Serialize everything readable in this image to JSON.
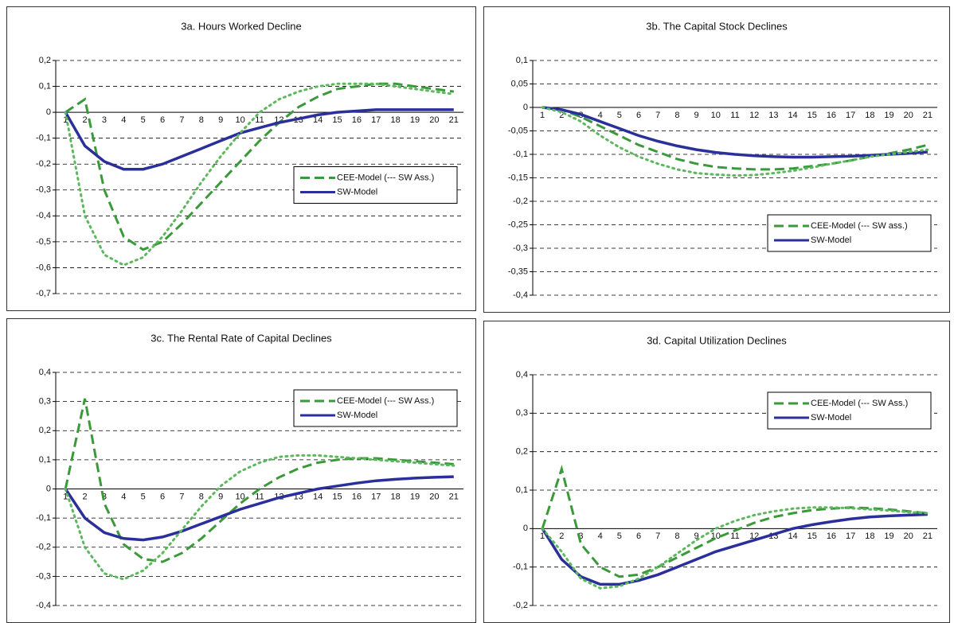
{
  "chart_data": [
    {
      "type": "line",
      "title": "3a. Hours Worked Decline",
      "categories": [
        "1",
        "2",
        "3",
        "4",
        "5",
        "6",
        "7",
        "8",
        "9",
        "10",
        "11",
        "12",
        "13",
        "14",
        "15",
        "16",
        "17",
        "18",
        "19",
        "20",
        "21"
      ],
      "ylim": [
        -0.7,
        0.2
      ],
      "yticks": [
        {
          "value": -0.7,
          "label": "-0,7"
        },
        {
          "value": -0.6,
          "label": "-0,6"
        },
        {
          "value": -0.5,
          "label": "-0,5"
        },
        {
          "value": -0.4,
          "label": "-0,4"
        },
        {
          "value": -0.3,
          "label": "-0,3"
        },
        {
          "value": -0.2,
          "label": "-0,2"
        },
        {
          "value": -0.1,
          "label": "-0,1"
        },
        0,
        {
          "value": 0.1,
          "label": "0,1"
        },
        {
          "value": 0.2,
          "label": "0,2"
        }
      ],
      "grid": true,
      "legend": "center right",
      "series": [
        {
          "name": "CEE-Model (--- SW Ass.)",
          "color": "#3a9a3a",
          "style": "dashed",
          "values": [
            0,
            0.05,
            -0.3,
            -0.48,
            -0.53,
            -0.5,
            -0.43,
            -0.35,
            -0.27,
            -0.19,
            -0.11,
            -0.04,
            0.02,
            0.06,
            0.09,
            0.1,
            0.11,
            0.11,
            0.1,
            0.09,
            0.08
          ]
        },
        {
          "name": "SW-Model",
          "color": "#2b2f9a",
          "style": "solid",
          "values": [
            0,
            -0.13,
            -0.19,
            -0.22,
            -0.22,
            -0.2,
            -0.17,
            -0.14,
            -0.11,
            -0.08,
            -0.06,
            -0.04,
            -0.025,
            -0.01,
            0,
            0.005,
            0.01,
            0.01,
            0.01,
            0.01,
            0.01
          ]
        },
        {
          "color": "#5cb85c",
          "style": "dotted",
          "values": [
            0,
            -0.4,
            -0.55,
            -0.59,
            -0.56,
            -0.48,
            -0.38,
            -0.27,
            -0.17,
            -0.08,
            0,
            0.05,
            0.08,
            0.1,
            0.11,
            0.11,
            0.11,
            0.1,
            0.09,
            0.08,
            0.07
          ]
        }
      ]
    },
    {
      "type": "line",
      "title": "3b. The Capital Stock Declines",
      "categories": [
        "1",
        "2",
        "3",
        "4",
        "5",
        "6",
        "7",
        "8",
        "9",
        "10",
        "11",
        "12",
        "13",
        "14",
        "15",
        "16",
        "17",
        "18",
        "19",
        "20",
        "21"
      ],
      "ylim": [
        -0.4,
        0.1
      ],
      "yticks": [
        {
          "value": -0.4,
          "label": "-0,4"
        },
        {
          "value": -0.35,
          "label": "-0,35"
        },
        {
          "value": -0.3,
          "label": "-0,3"
        },
        {
          "value": -0.25,
          "label": "-0,25"
        },
        {
          "value": -0.2,
          "label": "-0,2"
        },
        {
          "value": -0.15,
          "label": "-0,15"
        },
        {
          "value": -0.1,
          "label": "-0,1"
        },
        {
          "value": -0.05,
          "label": "-0,05"
        },
        0,
        {
          "value": 0.05,
          "label": "0,05"
        },
        {
          "value": 0.1,
          "label": "0,1"
        }
      ],
      "grid": true,
      "legend": "lower right",
      "series": [
        {
          "name": "CEE-Model (--- SW ass.)",
          "color": "#3a9a3a",
          "style": "dashed",
          "values": [
            0,
            -0.005,
            -0.02,
            -0.04,
            -0.06,
            -0.08,
            -0.095,
            -0.11,
            -0.12,
            -0.127,
            -0.13,
            -0.132,
            -0.132,
            -0.13,
            -0.125,
            -0.12,
            -0.113,
            -0.105,
            -0.098,
            -0.09,
            -0.08
          ]
        },
        {
          "name": "SW-Model",
          "color": "#2b2f9a",
          "style": "solid",
          "values": [
            0,
            -0.005,
            -0.015,
            -0.03,
            -0.045,
            -0.06,
            -0.072,
            -0.082,
            -0.09,
            -0.096,
            -0.1,
            -0.103,
            -0.105,
            -0.106,
            -0.106,
            -0.105,
            -0.104,
            -0.102,
            -0.1,
            -0.098,
            -0.095
          ]
        },
        {
          "color": "#5cb85c",
          "style": "dotted",
          "values": [
            0,
            -0.01,
            -0.03,
            -0.06,
            -0.085,
            -0.105,
            -0.12,
            -0.132,
            -0.14,
            -0.143,
            -0.145,
            -0.144,
            -0.14,
            -0.135,
            -0.128,
            -0.12,
            -0.113,
            -0.105,
            -0.1,
            -0.095,
            -0.09
          ]
        }
      ]
    },
    {
      "type": "line",
      "title": "3c. The Rental Rate of Capital Declines",
      "categories": [
        "1",
        "2",
        "3",
        "4",
        "5",
        "6",
        "7",
        "8",
        "9",
        "10",
        "11",
        "12",
        "13",
        "14",
        "15",
        "16",
        "17",
        "18",
        "19",
        "20",
        "21"
      ],
      "ylim": [
        -0.4,
        0.4
      ],
      "yticks": [
        {
          "value": -0.4,
          "label": "-0,4"
        },
        {
          "value": -0.3,
          "label": "-0,3"
        },
        {
          "value": -0.2,
          "label": "-0,2"
        },
        {
          "value": -0.1,
          "label": "-0,1"
        },
        0,
        {
          "value": 0.1,
          "label": "0,1"
        },
        {
          "value": 0.2,
          "label": "0,2"
        },
        {
          "value": 0.3,
          "label": "0,3"
        },
        {
          "value": 0.4,
          "label": "0,4"
        }
      ],
      "grid": true,
      "legend": "upper right",
      "series": [
        {
          "name": "CEE-Model (--- SW Ass.)",
          "color": "#3a9a3a",
          "style": "dashed",
          "values": [
            0,
            0.31,
            -0.05,
            -0.19,
            -0.24,
            -0.25,
            -0.22,
            -0.17,
            -0.11,
            -0.05,
            0,
            0.04,
            0.07,
            0.09,
            0.1,
            0.105,
            0.105,
            0.1,
            0.095,
            0.09,
            0.085
          ]
        },
        {
          "name": "SW-Model",
          "color": "#2b2f9a",
          "style": "solid",
          "values": [
            0,
            -0.1,
            -0.15,
            -0.17,
            -0.175,
            -0.165,
            -0.145,
            -0.12,
            -0.095,
            -0.07,
            -0.05,
            -0.03,
            -0.015,
            0,
            0.01,
            0.02,
            0.028,
            0.033,
            0.037,
            0.04,
            0.042
          ]
        },
        {
          "color": "#5cb85c",
          "style": "dotted",
          "values": [
            0,
            -0.2,
            -0.29,
            -0.31,
            -0.28,
            -0.22,
            -0.14,
            -0.06,
            0.01,
            0.06,
            0.09,
            0.11,
            0.115,
            0.115,
            0.11,
            0.105,
            0.1,
            0.095,
            0.09,
            0.085,
            0.08
          ]
        }
      ]
    },
    {
      "type": "line",
      "title": "3d. Capital Utilization Declines",
      "categories": [
        "1",
        "2",
        "3",
        "4",
        "5",
        "6",
        "7",
        "8",
        "9",
        "10",
        "11",
        "12",
        "13",
        "14",
        "15",
        "16",
        "17",
        "18",
        "19",
        "20",
        "21"
      ],
      "ylim": [
        -0.2,
        0.4
      ],
      "yticks": [
        {
          "value": -0.2,
          "label": "-0,2"
        },
        {
          "value": -0.1,
          "label": "-0,1"
        },
        0,
        {
          "value": 0.1,
          "label": "0,1"
        },
        {
          "value": 0.2,
          "label": "0,2"
        },
        {
          "value": 0.3,
          "label": "0,3"
        },
        {
          "value": 0.4,
          "label": "0,4"
        }
      ],
      "grid": true,
      "legend": "upper right",
      "series": [
        {
          "name": "CEE-Model (--- SW Ass.)",
          "color": "#3a9a3a",
          "style": "dashed",
          "values": [
            0,
            0.155,
            -0.04,
            -0.1,
            -0.125,
            -0.12,
            -0.1,
            -0.075,
            -0.05,
            -0.025,
            -0.005,
            0.015,
            0.03,
            0.04,
            0.048,
            0.052,
            0.055,
            0.053,
            0.05,
            0.045,
            0.04
          ]
        },
        {
          "name": "SW-Model",
          "color": "#2b2f9a",
          "style": "solid",
          "values": [
            0,
            -0.08,
            -0.125,
            -0.145,
            -0.145,
            -0.135,
            -0.12,
            -0.1,
            -0.08,
            -0.06,
            -0.045,
            -0.03,
            -0.015,
            0,
            0.01,
            0.018,
            0.025,
            0.03,
            0.033,
            0.035,
            0.037
          ]
        },
        {
          "color": "#5cb85c",
          "style": "dotted",
          "values": [
            0,
            -0.06,
            -0.13,
            -0.155,
            -0.15,
            -0.13,
            -0.1,
            -0.065,
            -0.03,
            0,
            0.02,
            0.035,
            0.045,
            0.052,
            0.055,
            0.055,
            0.053,
            0.05,
            0.047,
            0.043,
            0.04
          ]
        }
      ]
    }
  ]
}
